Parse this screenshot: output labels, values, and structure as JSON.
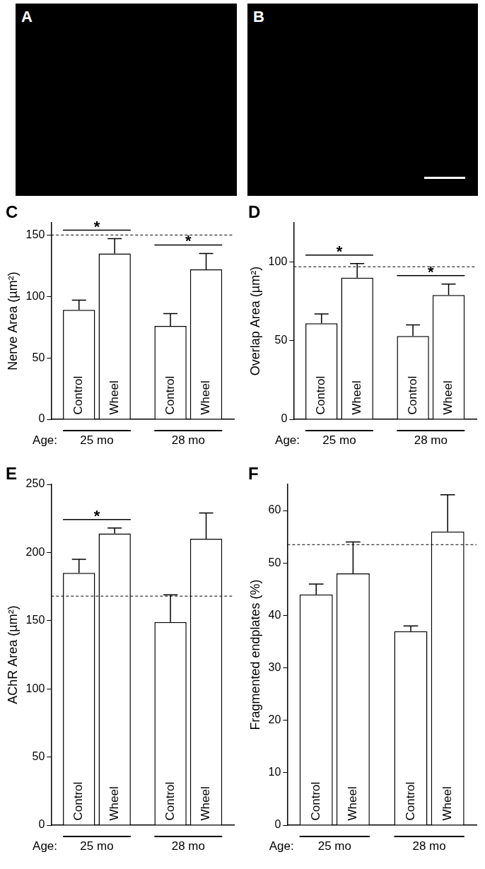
{
  "images": [
    {
      "panel": "A"
    },
    {
      "panel": "B"
    }
  ],
  "chart_data": [
    {
      "type": "bar",
      "panel": "C",
      "y_label": "Nerve Area (µm²)",
      "categories": [
        "25 mo",
        "28 mo"
      ],
      "category_axis_label": "Age:",
      "series": [
        {
          "name": "Control",
          "color": "#ffffff",
          "values": [
            89,
            76
          ],
          "errors": [
            8,
            10
          ]
        },
        {
          "name": "Wheel",
          "color": "#ffffff",
          "values": [
            135,
            122
          ],
          "errors": [
            12,
            13
          ]
        }
      ],
      "ylim": [
        0,
        160
      ],
      "yticks": [
        0,
        50,
        100,
        150
      ],
      "grid": false,
      "reference_line": 150,
      "significance": [
        {
          "category": 0,
          "label": "*"
        },
        {
          "category": 1,
          "label": "*"
        }
      ]
    },
    {
      "type": "bar",
      "panel": "D",
      "y_label": "Overlap Area (µm²)",
      "categories": [
        "25 mo",
        "28 mo"
      ],
      "category_axis_label": "Age:",
      "series": [
        {
          "name": "Control",
          "color": "#ffffff",
          "values": [
            61,
            53
          ],
          "errors": [
            6,
            7
          ]
        },
        {
          "name": "Wheel",
          "color": "#ffffff",
          "values": [
            90,
            79
          ],
          "errors": [
            9,
            7
          ]
        }
      ],
      "ylim": [
        0,
        125
      ],
      "yticks": [
        0,
        50,
        100
      ],
      "grid": false,
      "reference_line": 97,
      "significance": [
        {
          "category": 0,
          "label": "*"
        },
        {
          "category": 1,
          "label": "*"
        }
      ]
    },
    {
      "type": "bar",
      "panel": "E",
      "y_label": "AChR Area (µm²)",
      "categories": [
        "25 mo",
        "28 mo"
      ],
      "category_axis_label": "Age:",
      "series": [
        {
          "name": "Control",
          "color": "#ffffff",
          "values": [
            185,
            149
          ],
          "errors": [
            10,
            20
          ]
        },
        {
          "name": "Wheel",
          "color": "#ffffff",
          "values": [
            214,
            210
          ],
          "errors": [
            4,
            19
          ]
        }
      ],
      "ylim": [
        0,
        250
      ],
      "yticks": [
        0,
        50,
        100,
        150,
        200,
        250
      ],
      "grid": false,
      "reference_line": 168,
      "significance": [
        {
          "category": 0,
          "label": "*"
        }
      ]
    },
    {
      "type": "bar",
      "panel": "F",
      "y_label": "Fragmented endplates (%)",
      "categories": [
        "25 mo",
        "28 mo"
      ],
      "category_axis_label": "Age:",
      "series": [
        {
          "name": "Control",
          "color": "#ffffff",
          "values": [
            44,
            37
          ],
          "errors": [
            2,
            1
          ]
        },
        {
          "name": "Wheel",
          "color": "#ffffff",
          "values": [
            48,
            56
          ],
          "errors": [
            6,
            7
          ]
        }
      ],
      "ylim": [
        0,
        65
      ],
      "yticks": [
        0,
        10,
        20,
        30,
        40,
        50,
        60
      ],
      "grid": false,
      "reference_line": 53.5,
      "significance": []
    }
  ]
}
